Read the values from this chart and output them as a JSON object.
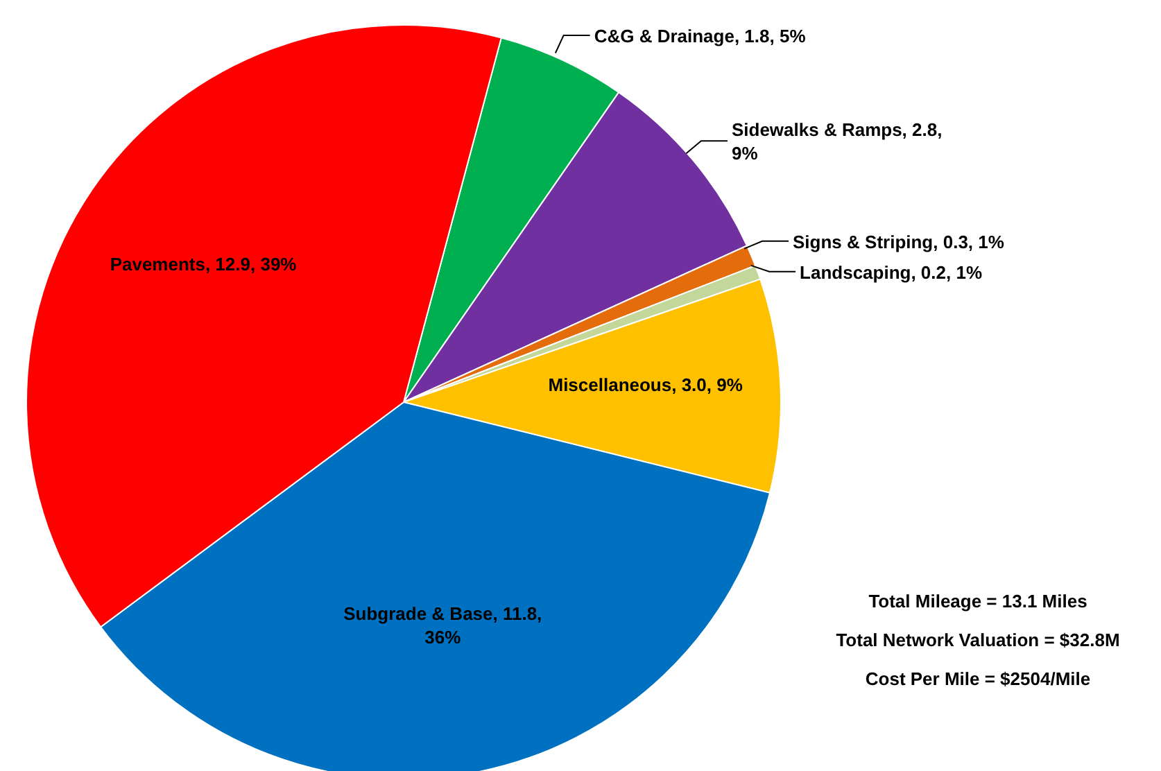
{
  "chart_data": {
    "type": "pie",
    "categories": [
      "C&G & Drainage",
      "Sidewalks & Ramps",
      "Signs & Striping",
      "Landscaping",
      "Miscellaneous",
      "Subgrade & Base",
      "Pavements"
    ],
    "values": [
      1.8,
      2.8,
      0.3,
      0.2,
      3.0,
      11.8,
      12.9
    ],
    "value_labels": [
      "1.8, 5%",
      "2.8, 9%",
      "0.3, 1%",
      "0.2, 1%",
      "3.0, 9%",
      "11.8, 36%",
      "12.9, 39%"
    ],
    "colors": [
      "#00b050",
      "#7030a0",
      "#e46c0a",
      "#c4d79b",
      "#ffc000",
      "#0070c0",
      "#ff0000"
    ],
    "annotations": [
      "Total Mileage = 13.1 Miles",
      "Total Network Valuation = $32.8M",
      "Cost Per Mile = $2504/Mile"
    ]
  }
}
